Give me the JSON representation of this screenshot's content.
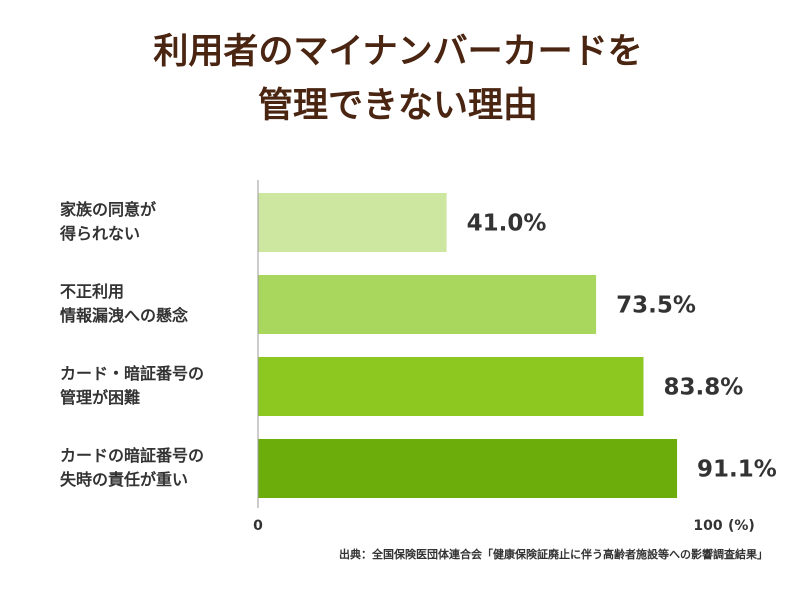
{
  "title_lines": [
    "利用者のマイナンバーカードを",
    "管理できない理由"
  ],
  "chart_data": {
    "type": "bar",
    "orientation": "horizontal",
    "categories": [
      [
        "家族の同意が",
        "得られない"
      ],
      [
        "不正利用",
        "情報漏洩への懸念"
      ],
      [
        "カード・暗証番号の",
        "管理が困難"
      ],
      [
        "カードの暗証番号の",
        "失時の責任が重い"
      ]
    ],
    "values": [
      41.0,
      73.5,
      83.8,
      91.1
    ],
    "value_labels": [
      "41.0%",
      "73.5%",
      "83.8%",
      "91.1%"
    ],
    "bar_colors": [
      "#cde6a0",
      "#a9d65c",
      "#8cc81f",
      "#6cad0c"
    ],
    "xlim": [
      0,
      100
    ],
    "x_tick_labels": [
      "0",
      "100"
    ],
    "x_unit": "(%)",
    "grid": false,
    "legend": "none"
  },
  "source": "出典：全国保険医団体連合会「健康保険証廃止に伴う高齢者施設等への影響調査結果」"
}
